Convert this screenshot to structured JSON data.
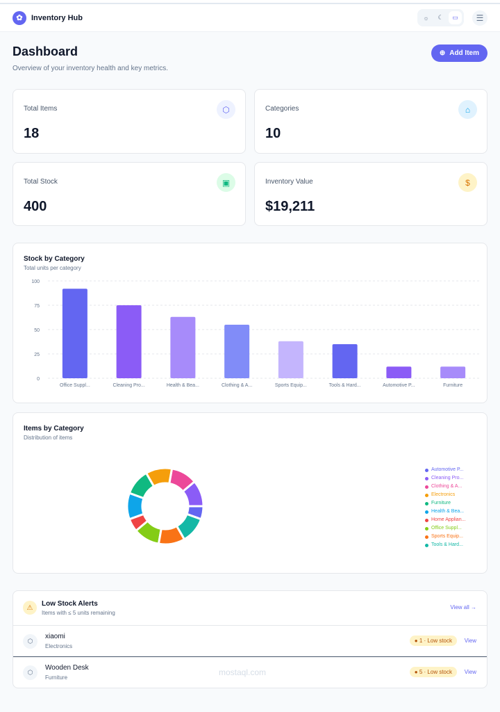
{
  "header": {
    "app_title": "Inventory Hub",
    "theme_options": [
      "light",
      "dark",
      "system"
    ],
    "theme_selected": "system"
  },
  "page": {
    "title": "Dashboard",
    "subtitle": "Overview of your inventory health and key metrics.",
    "add_button": "Add Item"
  },
  "stats": [
    {
      "label": "Total Items",
      "value": "18",
      "icon": "cube-icon",
      "color": "#6366f1"
    },
    {
      "label": "Categories",
      "value": "10",
      "icon": "tag-icon",
      "color": "#0ea5e9"
    },
    {
      "label": "Total Stock",
      "value": "400",
      "icon": "archive-icon",
      "color": "#10b981"
    },
    {
      "label": "Inventory Value",
      "value": "$19,211",
      "icon": "dollar-icon",
      "color": "#d97706"
    }
  ],
  "chart_data": [
    {
      "type": "bar",
      "title": "Stock by Category",
      "subtitle": "Total units per category",
      "categories": [
        "Office Suppl...",
        "Cleaning Pro...",
        "Health & Bea...",
        "Clothing & A...",
        "Sports Equip...",
        "Tools & Hard...",
        "Automotive P...",
        "Furniture"
      ],
      "values": [
        92,
        75,
        63,
        55,
        38,
        35,
        12,
        12
      ],
      "colors": [
        "#6366f1",
        "#8b5cf6",
        "#a78bfa",
        "#818cf8",
        "#c4b5fd",
        "#6366f1",
        "#8b5cf6",
        "#a78bfa"
      ],
      "yticks": [
        0,
        25,
        50,
        75,
        100
      ],
      "ylim": [
        0,
        100
      ],
      "grid": true
    },
    {
      "type": "pie",
      "title": "Items by Category",
      "subtitle": "Distribution of items",
      "legend_position": "right",
      "categories": [
        "Automotive P...",
        "Cleaning Pro...",
        "Clothing & A...",
        "Electronics",
        "Furniture",
        "Health & Bea...",
        "Home Applian...",
        "Office Suppl...",
        "Sports Equip...",
        "Tools & Hard..."
      ],
      "values": [
        1,
        2,
        2,
        2,
        2,
        2,
        1,
        2,
        2,
        2
      ],
      "colors": [
        "#6366f1",
        "#8b5cf6",
        "#ec4899",
        "#f59e0b",
        "#10b981",
        "#0ea5e9",
        "#ef4444",
        "#84cc16",
        "#f97316",
        "#14b8a6"
      ]
    }
  ],
  "alerts": {
    "title": "Low Stock Alerts",
    "subtitle": "Items with ≤ 5 units remaining",
    "view_all": "View all →",
    "items": [
      {
        "name": "xiaomi",
        "category": "Electronics",
        "badge": "1 · Low stock",
        "action": "View"
      },
      {
        "name": "Wooden Desk",
        "category": "Furniture",
        "badge": "5 · Low stock",
        "action": "View"
      }
    ]
  },
  "watermark": "mostaql.com"
}
